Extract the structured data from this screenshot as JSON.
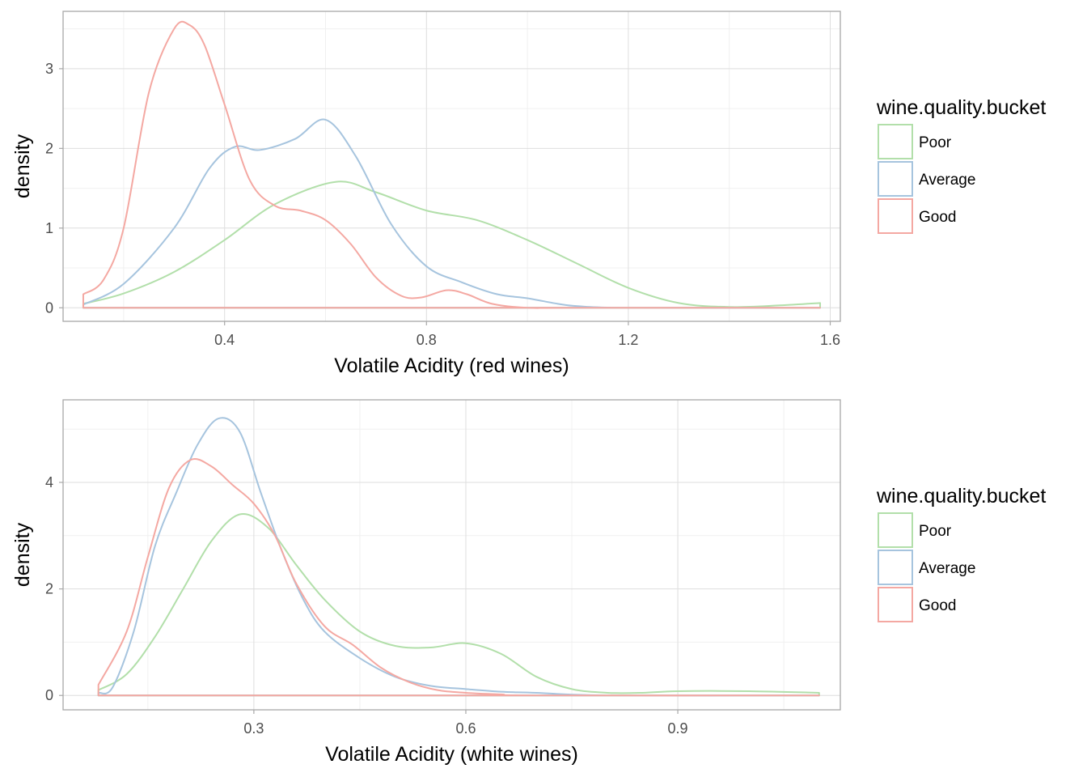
{
  "chart_data": [
    {
      "type": "line",
      "subtype": "density",
      "title": "",
      "xlabel": "Volatile Acidity (red wines)",
      "ylabel": "density",
      "xlim": [
        0.08,
        1.62
      ],
      "ylim": [
        -0.17,
        3.72
      ],
      "xticks": [
        0.4,
        0.8,
        1.2,
        1.6
      ],
      "xtick_labels": [
        "0.4",
        "0.8",
        "1.2",
        "1.6"
      ],
      "yticks": [
        0,
        1,
        2,
        3
      ],
      "ytick_labels": [
        "0",
        "1",
        "2",
        "3"
      ],
      "grid": true,
      "legend": {
        "title": "wine.quality.bucket",
        "position": "right"
      },
      "series": [
        {
          "name": "Poor",
          "color": "#b2dfaa",
          "x": [
            0.12,
            0.2,
            0.3,
            0.4,
            0.5,
            0.62,
            0.7,
            0.8,
            0.9,
            1.0,
            1.1,
            1.2,
            1.3,
            1.4,
            1.5,
            1.58
          ],
          "y": [
            0.05,
            0.18,
            0.45,
            0.85,
            1.3,
            1.58,
            1.45,
            1.22,
            1.1,
            0.85,
            0.55,
            0.25,
            0.06,
            0.01,
            0.03,
            0.06
          ]
        },
        {
          "name": "Average",
          "color": "#a6c4de",
          "x": [
            0.12,
            0.2,
            0.3,
            0.37,
            0.42,
            0.47,
            0.54,
            0.6,
            0.66,
            0.73,
            0.8,
            0.87,
            0.94,
            1.0,
            1.06,
            1.1,
            1.2,
            1.58
          ],
          "y": [
            0.04,
            0.3,
            1.0,
            1.75,
            2.02,
            1.98,
            2.12,
            2.36,
            1.9,
            1.05,
            0.52,
            0.32,
            0.17,
            0.12,
            0.05,
            0.02,
            0.0,
            0.0
          ]
        },
        {
          "name": "Good",
          "color": "#f4a8a2",
          "x": [
            0.12,
            0.16,
            0.2,
            0.25,
            0.3,
            0.33,
            0.36,
            0.4,
            0.45,
            0.5,
            0.55,
            0.6,
            0.65,
            0.7,
            0.75,
            0.79,
            0.84,
            0.88,
            0.93,
            1.0,
            1.1,
            1.58
          ],
          "y": [
            0.17,
            0.35,
            1.0,
            2.7,
            3.5,
            3.55,
            3.3,
            2.55,
            1.6,
            1.28,
            1.22,
            1.1,
            0.8,
            0.38,
            0.15,
            0.13,
            0.22,
            0.17,
            0.05,
            0.0,
            0.0,
            0.0
          ]
        }
      ]
    },
    {
      "type": "line",
      "subtype": "density",
      "title": "",
      "xlabel": "Volatile Acidity (white wines)",
      "ylabel": "density",
      "xlim": [
        0.03,
        1.13
      ],
      "ylim": [
        -0.27,
        5.55
      ],
      "xticks": [
        0.3,
        0.6,
        0.9
      ],
      "xtick_labels": [
        "0.3",
        "0.6",
        "0.9"
      ],
      "yticks": [
        0,
        2,
        4
      ],
      "ytick_labels": [
        "0",
        "2",
        "4"
      ],
      "grid": true,
      "legend": {
        "title": "wine.quality.bucket",
        "position": "right"
      },
      "series": [
        {
          "name": "Poor",
          "color": "#b2dfaa",
          "x": [
            0.08,
            0.12,
            0.16,
            0.2,
            0.24,
            0.28,
            0.32,
            0.36,
            0.4,
            0.45,
            0.5,
            0.55,
            0.6,
            0.65,
            0.7,
            0.75,
            0.8,
            0.85,
            0.9,
            1.0,
            1.1
          ],
          "y": [
            0.1,
            0.4,
            1.1,
            2.0,
            2.9,
            3.4,
            3.15,
            2.45,
            1.8,
            1.2,
            0.93,
            0.9,
            0.98,
            0.78,
            0.35,
            0.12,
            0.05,
            0.05,
            0.08,
            0.08,
            0.05
          ]
        },
        {
          "name": "Average",
          "color": "#a6c4de",
          "x": [
            0.08,
            0.1,
            0.13,
            0.16,
            0.19,
            0.22,
            0.25,
            0.28,
            0.31,
            0.34,
            0.37,
            0.4,
            0.45,
            0.5,
            0.55,
            0.6,
            0.65,
            0.7,
            0.8,
            1.1
          ],
          "y": [
            0.05,
            0.15,
            1.2,
            2.8,
            3.8,
            4.7,
            5.2,
            4.95,
            3.8,
            2.7,
            1.8,
            1.2,
            0.7,
            0.35,
            0.18,
            0.12,
            0.07,
            0.05,
            0.0,
            0.0
          ]
        },
        {
          "name": "Good",
          "color": "#f4a8a2",
          "x": [
            0.08,
            0.12,
            0.15,
            0.18,
            0.21,
            0.24,
            0.27,
            0.3,
            0.33,
            0.36,
            0.4,
            0.44,
            0.48,
            0.52,
            0.56,
            0.6,
            0.65,
            0.7,
            1.1
          ],
          "y": [
            0.2,
            1.2,
            2.6,
            3.9,
            4.42,
            4.3,
            3.95,
            3.6,
            3.0,
            2.1,
            1.3,
            0.95,
            0.52,
            0.25,
            0.1,
            0.05,
            0.02,
            0.0,
            0.0
          ]
        }
      ]
    }
  ]
}
